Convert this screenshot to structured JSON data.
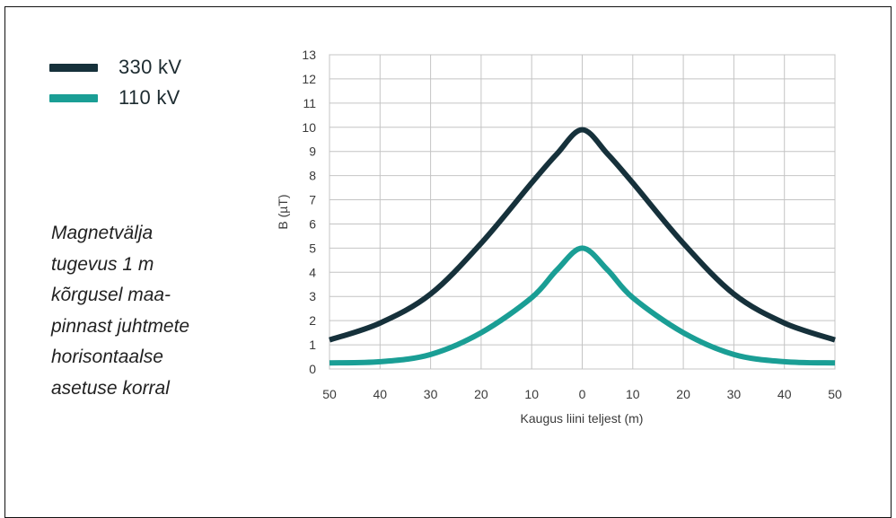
{
  "caption": {
    "lines": [
      "Magnetvälja",
      "tugevus 1 m",
      "kõrgusel maa-",
      "pinnast juhtmete",
      "horisontaalse",
      "asetuse korral"
    ]
  },
  "legend": [
    {
      "label": "330 kV",
      "color": "#16313b"
    },
    {
      "label": "110 kV",
      "color": "#1a9e95"
    }
  ],
  "chart_data": {
    "type": "line",
    "title": "",
    "xlabel": "Kaugus liini teljest (m)",
    "ylabel": "B (µT)",
    "x": [
      -50,
      -40,
      -30,
      -20,
      -10,
      -5,
      0,
      5,
      10,
      20,
      30,
      40,
      50
    ],
    "x_tick_labels": [
      "50",
      "40",
      "30",
      "20",
      "10",
      "0",
      "10",
      "20",
      "30",
      "40",
      "50"
    ],
    "y_ticks": [
      0,
      1,
      2,
      3,
      4,
      5,
      6,
      7,
      8,
      9,
      10,
      11,
      12,
      13
    ],
    "xlim": [
      -50,
      50
    ],
    "ylim": [
      0,
      13
    ],
    "grid": true,
    "legend_position": "top-left",
    "series": [
      {
        "name": "330 kV",
        "color": "#16313b",
        "values": [
          1.2,
          1.9,
          3.1,
          5.2,
          7.7,
          8.9,
          9.9,
          8.9,
          7.7,
          5.2,
          3.1,
          1.9,
          1.2
        ]
      },
      {
        "name": "110 kV",
        "color": "#1a9e95",
        "values": [
          0.25,
          0.3,
          0.6,
          1.5,
          2.95,
          4.1,
          5.0,
          4.1,
          2.95,
          1.5,
          0.6,
          0.3,
          0.25
        ]
      }
    ]
  }
}
